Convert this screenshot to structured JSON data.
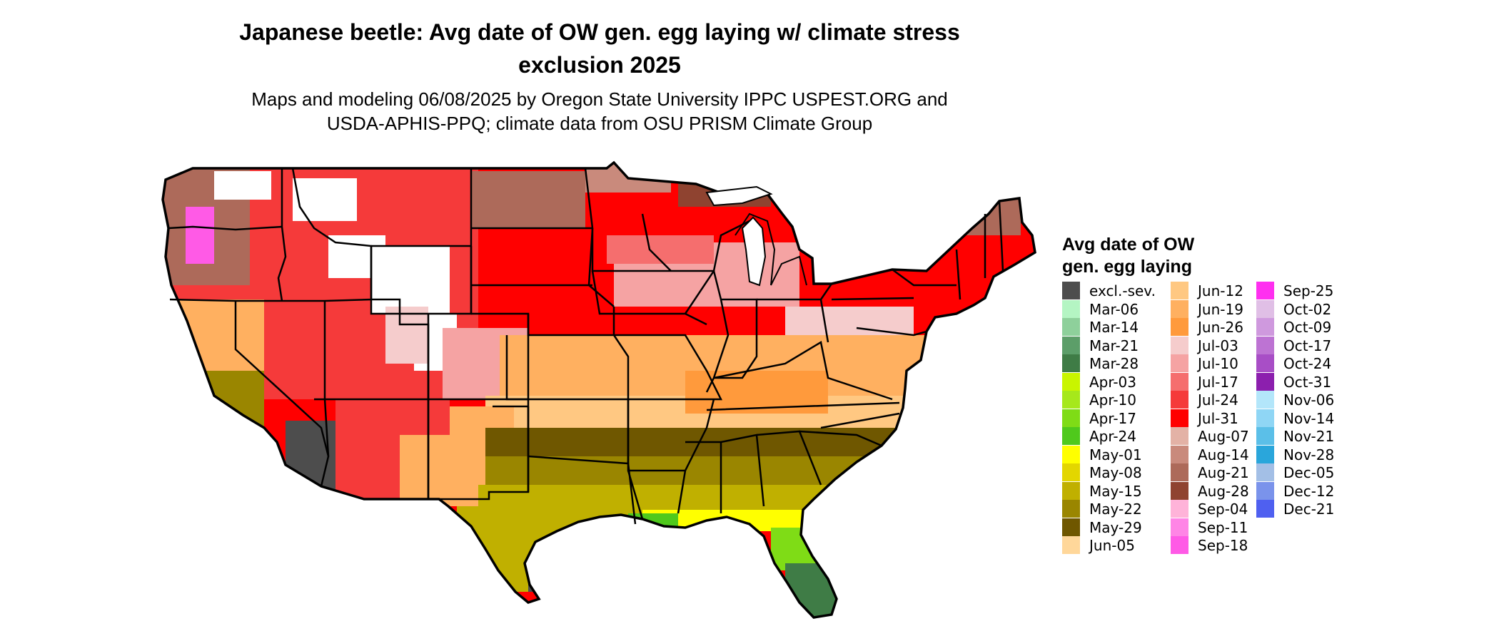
{
  "title_line1": "Japanese beetle: Avg date of OW gen. egg laying w/ climate stress",
  "title_line2": "exclusion 2025",
  "subtitle_line1": "Maps and modeling 06/08/2025 by Oregon State University IPPC USPEST.ORG and",
  "subtitle_line2": "USDA-APHIS-PPQ; climate data from OSU PRISM Climate Group",
  "legend": {
    "title_line1": "Avg date of OW",
    "title_line2": "gen. egg laying",
    "items": [
      {
        "label": "excl.-sev.",
        "color": "#4d4d4d"
      },
      {
        "label": "Mar-06",
        "color": "#b4f5c3"
      },
      {
        "label": "Mar-14",
        "color": "#8ed09b"
      },
      {
        "label": "Mar-21",
        "color": "#5c9e69"
      },
      {
        "label": "Mar-28",
        "color": "#3f7c46"
      },
      {
        "label": "Apr-03",
        "color": "#c9f500"
      },
      {
        "label": "Apr-10",
        "color": "#a6e81b"
      },
      {
        "label": "Apr-17",
        "color": "#7fdc16"
      },
      {
        "label": "Apr-24",
        "color": "#4fc91c"
      },
      {
        "label": "May-01",
        "color": "#ffff00"
      },
      {
        "label": "May-08",
        "color": "#e3d600"
      },
      {
        "label": "May-15",
        "color": "#c0b000"
      },
      {
        "label": "May-22",
        "color": "#9a8600"
      },
      {
        "label": "May-29",
        "color": "#6f5700"
      },
      {
        "label": "Jun-05",
        "color": "#ffd79a"
      },
      {
        "label": "Jun-12",
        "color": "#ffc882"
      },
      {
        "label": "Jun-19",
        "color": "#ffb060"
      },
      {
        "label": "Jun-26",
        "color": "#ff9a3c"
      },
      {
        "label": "Jul-03",
        "color": "#f5cccc"
      },
      {
        "label": "Jul-10",
        "color": "#f5a3a3"
      },
      {
        "label": "Jul-17",
        "color": "#f56e6e"
      },
      {
        "label": "Jul-24",
        "color": "#f53a3a"
      },
      {
        "label": "Jul-31",
        "color": "#ff0000"
      },
      {
        "label": "Aug-07",
        "color": "#e3b2a6"
      },
      {
        "label": "Aug-14",
        "color": "#c98a7c"
      },
      {
        "label": "Aug-21",
        "color": "#ad6a5a"
      },
      {
        "label": "Aug-28",
        "color": "#8f4330"
      },
      {
        "label": "Sep-04",
        "color": "#ffb3d9"
      },
      {
        "label": "Sep-11",
        "color": "#ff85e6"
      },
      {
        "label": "Sep-18",
        "color": "#ff5ae6"
      },
      {
        "label": "Sep-25",
        "color": "#ff2ff0"
      },
      {
        "label": "Oct-02",
        "color": "#e0bfe6"
      },
      {
        "label": "Oct-09",
        "color": "#cf99de"
      },
      {
        "label": "Oct-17",
        "color": "#bd73d3"
      },
      {
        "label": "Oct-24",
        "color": "#a84ec6"
      },
      {
        "label": "Oct-31",
        "color": "#8c1fae"
      },
      {
        "label": "Nov-06",
        "color": "#b3e6fa"
      },
      {
        "label": "Nov-14",
        "color": "#8fd6f5"
      },
      {
        "label": "Nov-21",
        "color": "#5bbfe8"
      },
      {
        "label": "Nov-28",
        "color": "#2aa6db"
      },
      {
        "label": "Dec-05",
        "color": "#a3bfe6"
      },
      {
        "label": "Dec-12",
        "color": "#7a93eb"
      },
      {
        "label": "Dec-21",
        "color": "#4f60f0"
      }
    ]
  }
}
